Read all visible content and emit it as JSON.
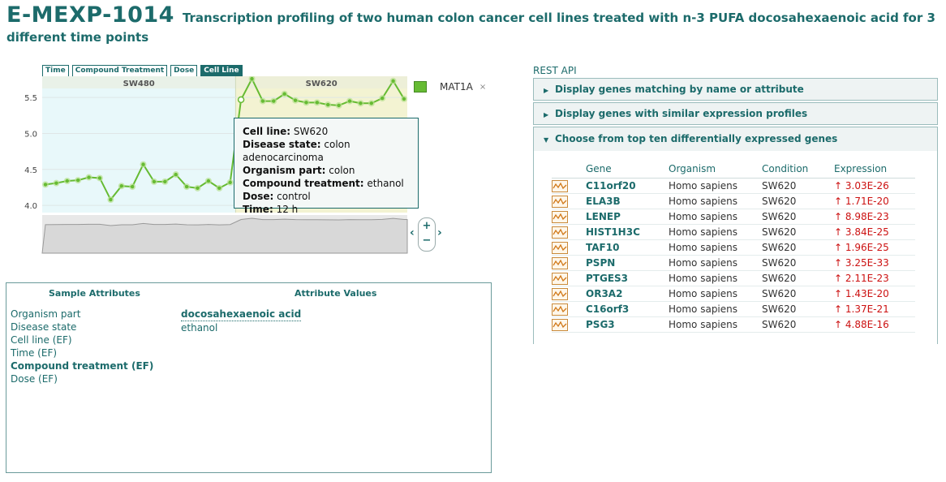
{
  "header": {
    "experiment_id": "E-MEXP-1014",
    "title_line1": "Transcription profiling of two human colon cancer cell lines treated with n-3 PUFA docosahexaenoic acid for 3",
    "title_line2": "different time points"
  },
  "tabs": [
    {
      "label": "Time",
      "active": false
    },
    {
      "label": "Compound Treatment",
      "active": false
    },
    {
      "label": "Dose",
      "active": false
    },
    {
      "label": "Cell Line",
      "active": true
    }
  ],
  "legend": {
    "label": "MAT1A",
    "close": "×",
    "color": "#66bb33"
  },
  "zoom": {
    "plus": "+",
    "minus": "−",
    "left": "‹",
    "right": "›"
  },
  "chart_data": {
    "type": "line",
    "groups": [
      {
        "label": "SW480",
        "color": "#e8f8fa"
      },
      {
        "label": "SW620",
        "color": "#f3f3d2"
      }
    ],
    "yticks": [
      "5.5",
      "5.0",
      "4.5",
      "4.0"
    ],
    "ylim": [
      3.9,
      5.75
    ],
    "series": [
      {
        "name": "MAT1A",
        "color": "#66bb33",
        "values": [
          4.29,
          4.31,
          4.34,
          4.35,
          4.39,
          4.38,
          4.08,
          4.27,
          4.26,
          4.57,
          4.33,
          4.33,
          4.43,
          4.26,
          4.24,
          4.34,
          4.24,
          4.32,
          5.47,
          5.76,
          5.45,
          5.45,
          5.55,
          5.46,
          5.43,
          5.43,
          5.4,
          5.39,
          5.45,
          5.42,
          5.42,
          5.49,
          5.73,
          5.48
        ]
      }
    ],
    "sw480_count": 18,
    "hover_index": 18
  },
  "tooltip": {
    "cell_line_label": "Cell line:",
    "cell_line": "SW620",
    "disease_label": "Disease state:",
    "disease": "colon adenocarcinoma",
    "organism_label": "Organism part:",
    "organism": "colon",
    "compound_label": "Compound treatment:",
    "compound": "ethanol",
    "dose_label": "Dose:",
    "dose": "control",
    "time_label": "Time:",
    "time": "12 h"
  },
  "attributes": {
    "header_left": "Sample Attributes",
    "header_right": "Attribute Values",
    "names": [
      {
        "label": "Organism part",
        "bold": false
      },
      {
        "label": "Disease state",
        "bold": false
      },
      {
        "label": "Cell line (EF)",
        "bold": false
      },
      {
        "label": "Time (EF)",
        "bold": false
      },
      {
        "label": "Compound treatment (EF)",
        "bold": true
      },
      {
        "label": "Dose (EF)",
        "bold": false
      }
    ],
    "values": [
      {
        "label": "docosahexaenoic acid",
        "bold": true
      },
      {
        "label": "ethanol",
        "bold": false
      }
    ]
  },
  "right_panel": {
    "rest_api": "REST API",
    "acc1": "Display genes matching by name or attribute",
    "acc2": "Display genes with similar expression profiles",
    "acc3": "Choose from top ten differentially expressed genes",
    "columns": [
      "Gene",
      "Organism",
      "Condition",
      "Expression"
    ],
    "genes": [
      {
        "gene": "C11orf20",
        "organism": "Homo sapiens",
        "condition": "SW620",
        "expression": "↑ 3.03E-26"
      },
      {
        "gene": "ELA3B",
        "organism": "Homo sapiens",
        "condition": "SW620",
        "expression": "↑ 1.71E-20"
      },
      {
        "gene": "LENEP",
        "organism": "Homo sapiens",
        "condition": "SW620",
        "expression": "↑ 8.98E-23"
      },
      {
        "gene": "HIST1H3C",
        "organism": "Homo sapiens",
        "condition": "SW620",
        "expression": "↑ 3.84E-25"
      },
      {
        "gene": "TAF10",
        "organism": "Homo sapiens",
        "condition": "SW620",
        "expression": "↑ 1.96E-25"
      },
      {
        "gene": "PSPN",
        "organism": "Homo sapiens",
        "condition": "SW620",
        "expression": "↑ 3.25E-33"
      },
      {
        "gene": "PTGES3",
        "organism": "Homo sapiens",
        "condition": "SW620",
        "expression": "↑ 2.11E-23"
      },
      {
        "gene": "OR3A2",
        "organism": "Homo sapiens",
        "condition": "SW620",
        "expression": "↑ 1.43E-20"
      },
      {
        "gene": "C16orf3",
        "organism": "Homo sapiens",
        "condition": "SW620",
        "expression": "↑ 1.37E-21"
      },
      {
        "gene": "PSG3",
        "organism": "Homo sapiens",
        "condition": "SW620",
        "expression": "↑ 4.88E-16"
      }
    ]
  }
}
